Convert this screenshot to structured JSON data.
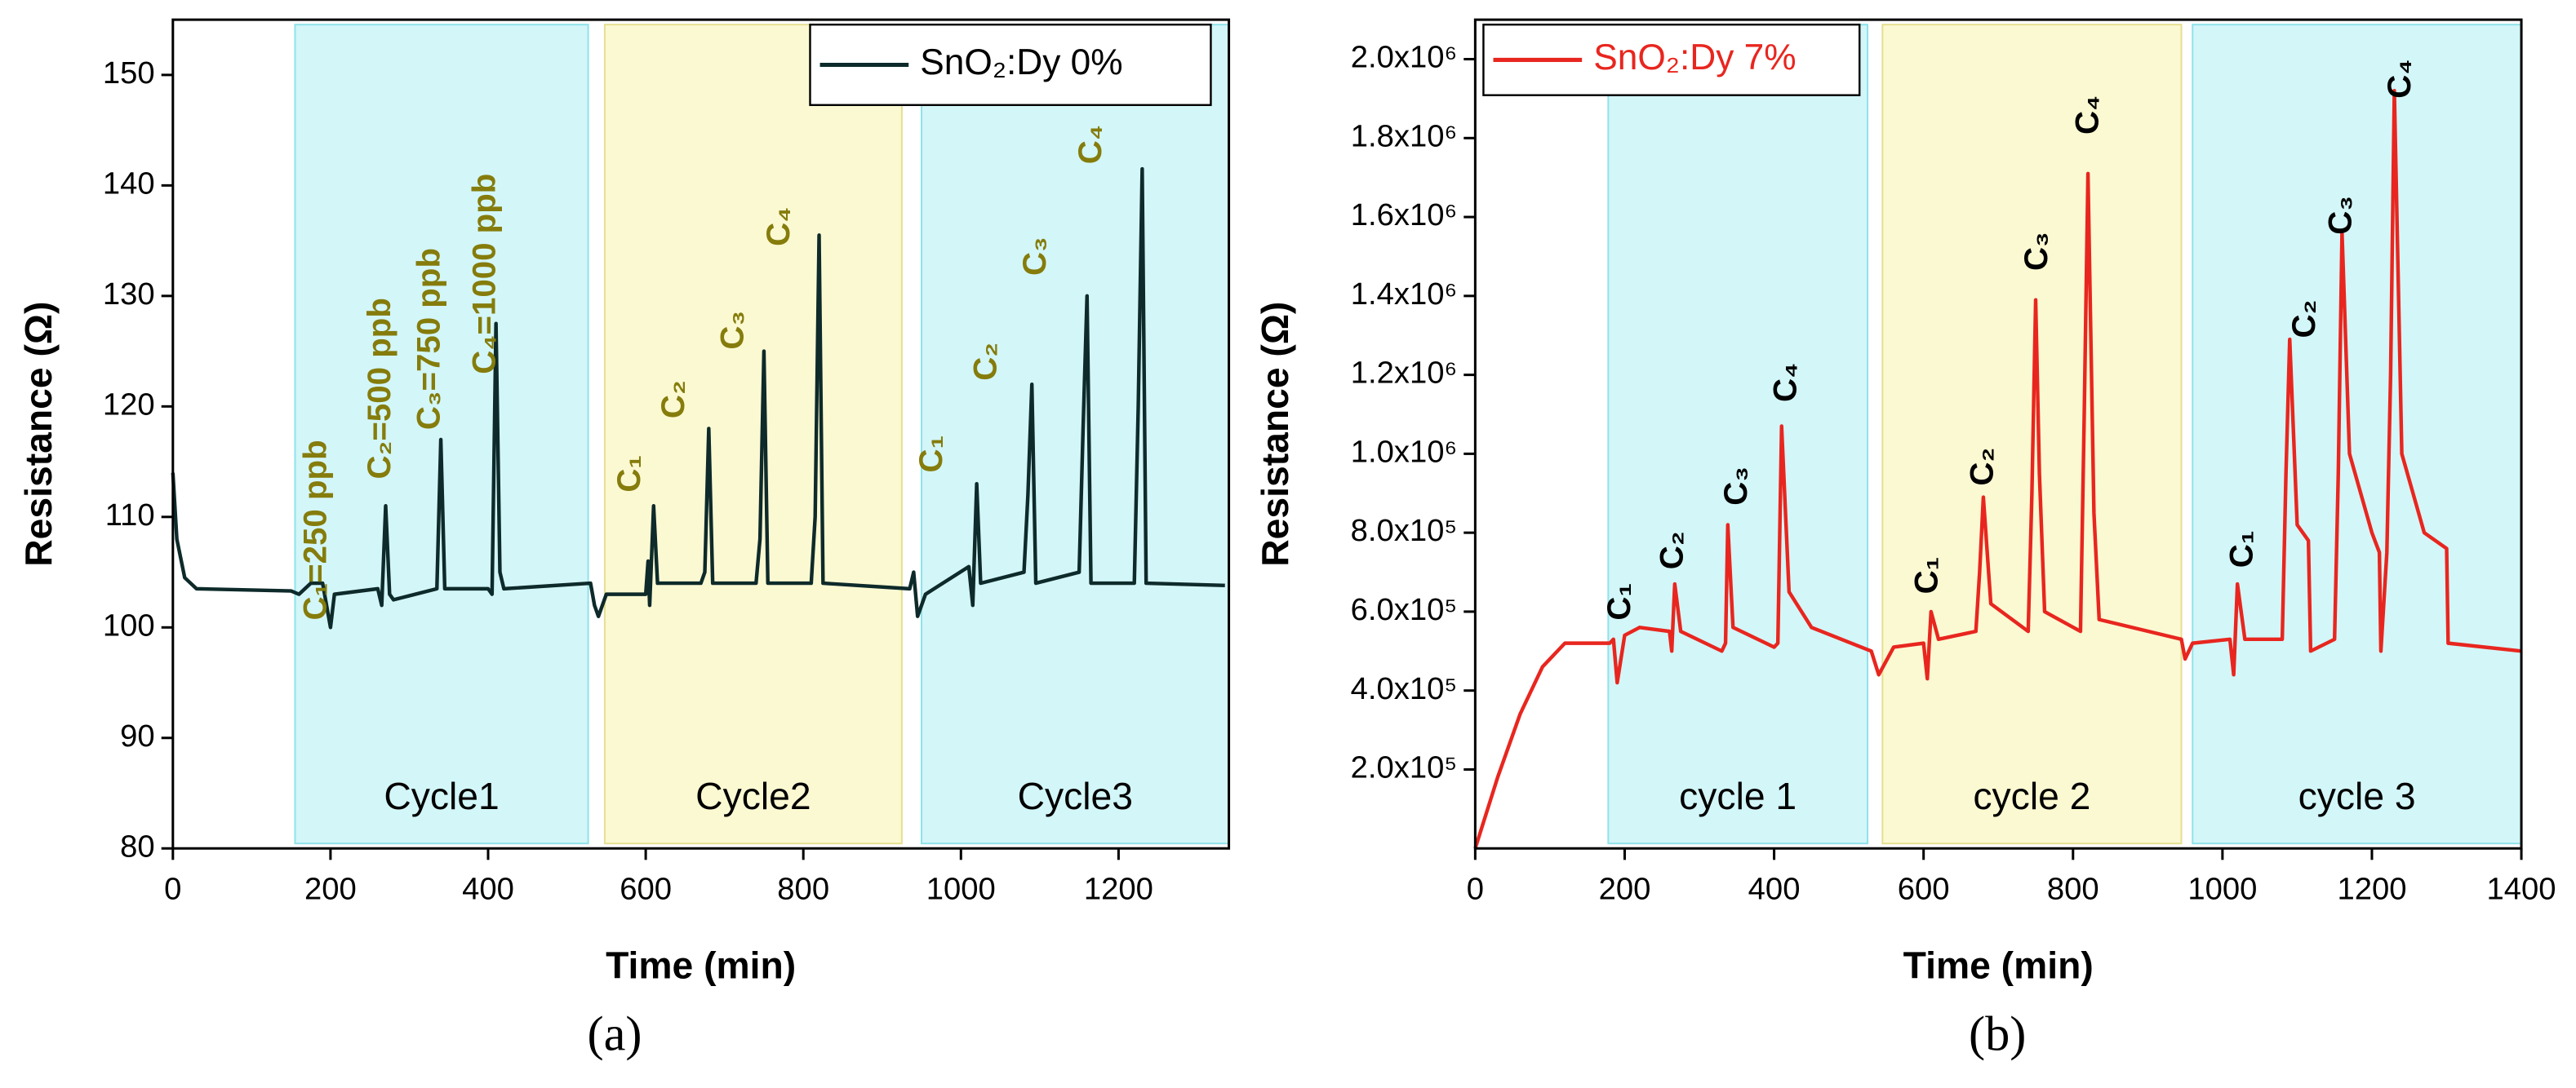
{
  "chart_data": [
    {
      "type": "line",
      "panel_label": "(a)",
      "xlabel": "Time (min)",
      "ylabel": "Resistance (Ω)",
      "xlim": [
        0,
        1340
      ],
      "xticks": [
        0,
        200,
        400,
        600,
        800,
        1000,
        1200
      ],
      "ylim": [
        80,
        155
      ],
      "yticks": [
        80,
        90,
        100,
        110,
        120,
        130,
        140,
        150
      ],
      "legend": "upper right",
      "legend_text_color": "#000000",
      "annotation_color": "#857c0c",
      "bands": [
        {
          "label": "Cycle1",
          "start": 155,
          "end": 527,
          "color": "#d3f6f8",
          "edge": "#8fe3ea"
        },
        {
          "label": "Cycle2",
          "start": 548,
          "end": 925,
          "color": "#fbf9d2",
          "edge": "#e6df90"
        },
        {
          "label": "Cycle3",
          "start": 950,
          "end": 1340,
          "color": "#d3f6f8",
          "edge": "#8fe3ea"
        }
      ],
      "annotations": [
        "C₁=250 ppb",
        "C₂=500 ppb",
        "C₃=750 ppb",
        "C₄=1000 ppb",
        "C₁",
        "C₂",
        "C₃",
        "C₄",
        "C₁",
        "C₂",
        "C₃",
        "C₄"
      ],
      "series": [
        {
          "name": "SnO₂:Dy 0%",
          "color": "#0e2a2a",
          "x": [
            0,
            5,
            15,
            30,
            150,
            160,
            175,
            190,
            200,
            205,
            260,
            265,
            270,
            275,
            280,
            335,
            340,
            345,
            400,
            405,
            410,
            415,
            420,
            530,
            535,
            540,
            550,
            600,
            603,
            605,
            610,
            615,
            670,
            675,
            680,
            685,
            740,
            745,
            750,
            755,
            810,
            815,
            820,
            825,
            935,
            940,
            945,
            955,
            1010,
            1015,
            1020,
            1025,
            1080,
            1085,
            1090,
            1095,
            1150,
            1155,
            1160,
            1165,
            1220,
            1225,
            1230,
            1235,
            1335
          ],
          "values": [
            114,
            108,
            104.5,
            103.5,
            103.3,
            103,
            104,
            104,
            100,
            103,
            103.5,
            102,
            111,
            103,
            102.5,
            103.5,
            117,
            103.5,
            103.5,
            103,
            127.5,
            105,
            103.5,
            104,
            102,
            101,
            103,
            103,
            106,
            102,
            111,
            104,
            104,
            105,
            118,
            104,
            104,
            108,
            125,
            104,
            104,
            110,
            135.5,
            104,
            103.5,
            105,
            101,
            103,
            105.5,
            102,
            113,
            104,
            105,
            112,
            122,
            104,
            105,
            118,
            130,
            104,
            104,
            120,
            141.5,
            104,
            103.8
          ]
        }
      ]
    },
    {
      "type": "line",
      "panel_label": "(b)",
      "xlabel": "Time (min)",
      "ylabel": "Resistance (Ω)",
      "xlim": [
        0,
        1400
      ],
      "xticks": [
        0,
        200,
        400,
        600,
        800,
        1000,
        1200,
        1400
      ],
      "ylim": [
        0,
        2100000
      ],
      "yticks": [
        {
          "value": 200000,
          "label": "2.0x10⁵"
        },
        {
          "value": 400000,
          "label": "4.0x10⁵"
        },
        {
          "value": 600000,
          "label": "6.0x10⁵"
        },
        {
          "value": 800000,
          "label": "8.0x10⁵"
        },
        {
          "value": 1000000,
          "label": "1.0x10⁶"
        },
        {
          "value": 1200000,
          "label": "1.2x10⁶"
        },
        {
          "value": 1400000,
          "label": "1.4x10⁶"
        },
        {
          "value": 1600000,
          "label": "1.6x10⁶"
        },
        {
          "value": 1800000,
          "label": "1.8x10⁶"
        },
        {
          "value": 2000000,
          "label": "2.0x10⁶"
        }
      ],
      "legend": "upper left",
      "legend_text_color": "#e8261f",
      "annotation_color": "#000000",
      "bands": [
        {
          "label": "cycle 1",
          "start": 178,
          "end": 525,
          "color": "#d3f6f8",
          "edge": "#8fe3ea"
        },
        {
          "label": "cycle 2",
          "start": 545,
          "end": 945,
          "color": "#fbf9d2",
          "edge": "#e6df90"
        },
        {
          "label": "cycle 3",
          "start": 960,
          "end": 1400,
          "color": "#d3f6f8",
          "edge": "#8fe3ea"
        }
      ],
      "annotations": [
        "C₁",
        "C₂",
        "C₃",
        "C₄",
        "C₁",
        "C₂",
        "C₃",
        "C₄",
        "C₁",
        "C₂",
        "C₃",
        "C₄"
      ],
      "series": [
        {
          "name": "SnO₂:Dy 7%",
          "color": "#e8261f",
          "x": [
            0,
            30,
            60,
            90,
            120,
            180,
            185,
            190,
            200,
            220,
            260,
            263,
            267,
            275,
            330,
            335,
            338,
            345,
            400,
            405,
            410,
            420,
            450,
            530,
            540,
            560,
            600,
            605,
            610,
            620,
            670,
            675,
            680,
            690,
            740,
            745,
            750,
            755,
            762,
            810,
            815,
            820,
            828,
            835,
            945,
            950,
            960,
            1010,
            1015,
            1020,
            1030,
            1080,
            1085,
            1090,
            1100,
            1115,
            1118,
            1150,
            1155,
            1160,
            1170,
            1200,
            1210,
            1212,
            1220,
            1225,
            1230,
            1240,
            1270,
            1300,
            1302,
            1400
          ],
          "values": [
            0,
            180000,
            340000,
            460000,
            520000,
            520000,
            530000,
            420000,
            540000,
            560000,
            550000,
            500000,
            670000,
            550000,
            500000,
            520000,
            820000,
            560000,
            510000,
            520000,
            1070000,
            650000,
            560000,
            500000,
            440000,
            510000,
            520000,
            430000,
            600000,
            530000,
            550000,
            700000,
            890000,
            620000,
            550000,
            900000,
            1390000,
            950000,
            600000,
            550000,
            1100000,
            1710000,
            850000,
            580000,
            530000,
            480000,
            520000,
            530000,
            440000,
            670000,
            530000,
            530000,
            950000,
            1290000,
            820000,
            780000,
            500000,
            530000,
            950000,
            1560000,
            1000000,
            800000,
            750000,
            500000,
            750000,
            1200000,
            1920000,
            1000000,
            800000,
            760000,
            520000,
            500000
          ]
        }
      ]
    }
  ]
}
